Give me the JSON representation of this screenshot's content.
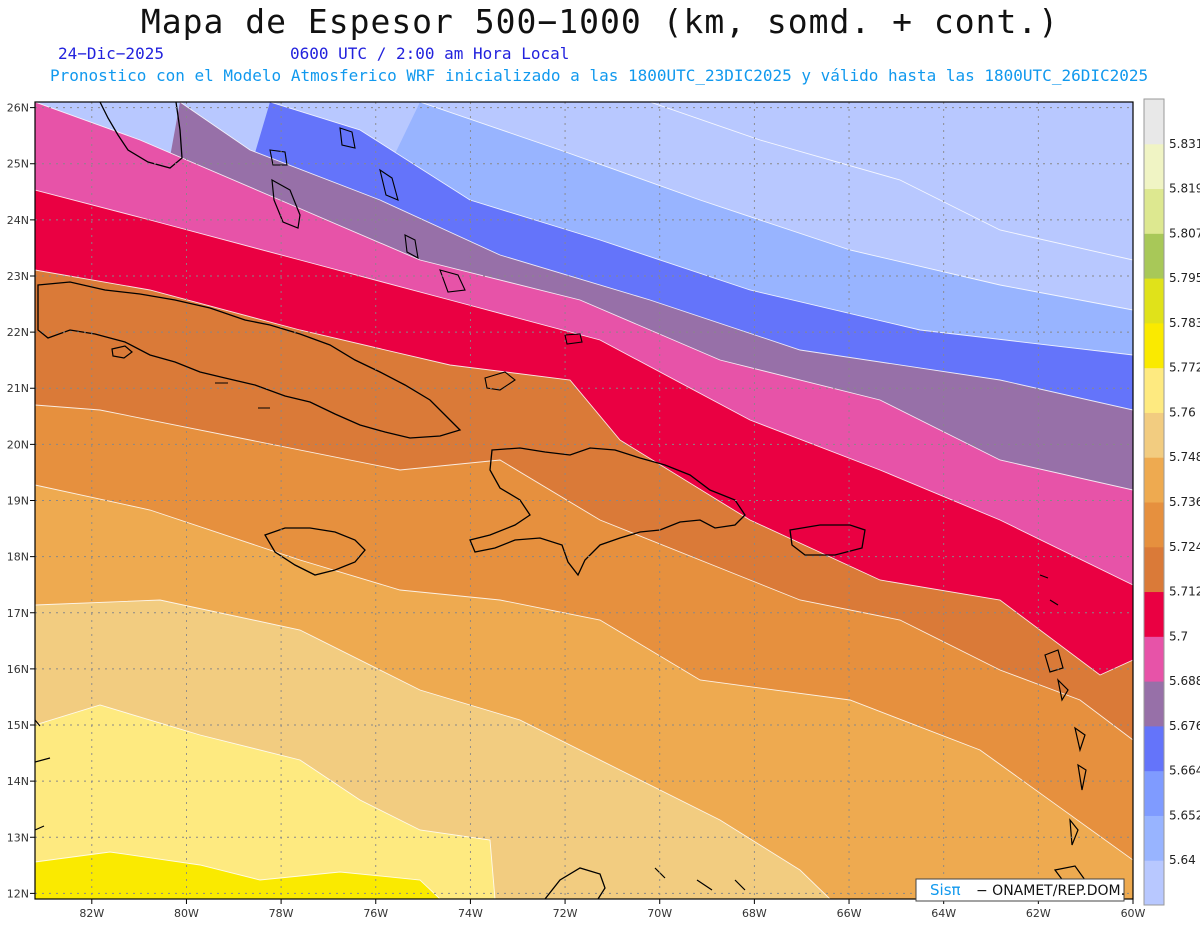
{
  "title": "Mapa de Espesor 500−1000 (km, somd. + cont.)",
  "date": "24−Dic−2025",
  "time": "0600 UTC / 2:00 am Hora Local",
  "info": "Pronostico con el Modelo Atmosferico WRF inicializado a las 1800UTC_23DIC2025 y válido hasta las  1800UTC_26DIC2025",
  "credit": {
    "sis": "Sisπ",
    "rest": "− ONAMET/REP.DOM."
  },
  "map": {
    "lon_range": [
      -83.2,
      -60
    ],
    "lat_range": [
      11.9,
      26.1
    ],
    "lon_ticks": [
      {
        "value": -82,
        "label": "82W"
      },
      {
        "value": -80,
        "label": "80W"
      },
      {
        "value": -78,
        "label": "78W"
      },
      {
        "value": -76,
        "label": "76W"
      },
      {
        "value": -74,
        "label": "74W"
      },
      {
        "value": -72,
        "label": "72W"
      },
      {
        "value": -70,
        "label": "70W"
      },
      {
        "value": -68,
        "label": "68W"
      },
      {
        "value": -66,
        "label": "66W"
      },
      {
        "value": -64,
        "label": "64W"
      },
      {
        "value": -62,
        "label": "62W"
      },
      {
        "value": -60,
        "label": "60W"
      }
    ],
    "lat_ticks": [
      {
        "value": 26,
        "label": "26N"
      },
      {
        "value": 25,
        "label": "25N"
      },
      {
        "value": 24,
        "label": "24N"
      },
      {
        "value": 23,
        "label": "23N"
      },
      {
        "value": 22,
        "label": "22N"
      },
      {
        "value": 21,
        "label": "21N"
      },
      {
        "value": 20,
        "label": "20N"
      },
      {
        "value": 19,
        "label": "19N"
      },
      {
        "value": 18,
        "label": "18N"
      },
      {
        "value": 17,
        "label": "17N"
      },
      {
        "value": 16,
        "label": "16N"
      },
      {
        "value": 15,
        "label": "15N"
      },
      {
        "value": 14,
        "label": "14N"
      },
      {
        "value": 13,
        "label": "13N"
      },
      {
        "value": 12,
        "label": "12N"
      }
    ]
  },
  "colorbar": {
    "colors": [
      "#b8c8ff",
      "#98b4ff",
      "#7f9bff",
      "#6474fa",
      "#9770a8",
      "#e753a8",
      "#ea0042",
      "#da7a38",
      "#e6903e",
      "#eeaa50",
      "#f2cc80",
      "#feea80",
      "#faea00",
      "#e0e21a",
      "#a8c858",
      "#dde890",
      "#f0f4c4",
      "#e8e8e8"
    ],
    "labels": [
      "5.64",
      "5.652",
      "5.664",
      "5.676",
      "5.688",
      "5.7",
      "5.712",
      "5.724",
      "5.736",
      "5.748",
      "5.76",
      "5.772",
      "5.783",
      "5.795",
      "5.807",
      "5.819",
      "5.831"
    ]
  },
  "bands": {
    "colors": [
      "#b8c8ff",
      "#98b4ff",
      "#6474fa",
      "#9770a8",
      "#e753a8",
      "#ea0042",
      "#da7a38",
      "#e6903e",
      "#eeaa50",
      "#f2cc80",
      "#feea80",
      "#faea00"
    ]
  }
}
